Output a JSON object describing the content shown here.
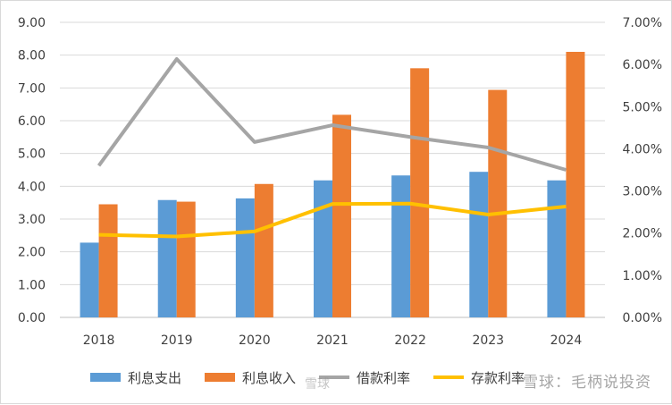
{
  "chart_data": {
    "type": "bar",
    "categories": [
      "2018",
      "2019",
      "2020",
      "2021",
      "2022",
      "2023",
      "2024"
    ],
    "series": [
      {
        "name": "利息支出",
        "kind": "bar",
        "axis": "left",
        "color": "#5b9bd5",
        "values": [
          2.28,
          3.58,
          3.63,
          4.18,
          4.33,
          4.44,
          4.18
        ]
      },
      {
        "name": "利息收入",
        "kind": "bar",
        "axis": "left",
        "color": "#ed7d31",
        "values": [
          3.45,
          3.53,
          4.07,
          6.18,
          7.6,
          6.94,
          8.1
        ]
      },
      {
        "name": "借款利率",
        "kind": "line",
        "axis": "right",
        "color": "#a5a5a5",
        "values": [
          0.036,
          0.0613,
          0.0416,
          0.0456,
          0.0428,
          0.0403,
          0.035
        ]
      },
      {
        "name": "存款利率",
        "kind": "line",
        "axis": "right",
        "color": "#ffc000",
        "values": [
          0.0196,
          0.0192,
          0.0204,
          0.0269,
          0.027,
          0.0244,
          0.0263
        ]
      }
    ],
    "y_left": {
      "min": 0,
      "max": 9,
      "step": 1,
      "ticks": [
        "0.00",
        "1.00",
        "2.00",
        "3.00",
        "4.00",
        "5.00",
        "6.00",
        "7.00",
        "8.00",
        "9.00"
      ]
    },
    "y_right": {
      "min": 0,
      "max": 0.07,
      "step": 0.01,
      "ticks": [
        "0.00%",
        "1.00%",
        "2.00%",
        "3.00%",
        "4.00%",
        "5.00%",
        "6.00%",
        "7.00%"
      ]
    },
    "grid": true,
    "legend_position": "bottom"
  },
  "legend": {
    "item1": "利息支出",
    "item2": "利息收入",
    "item3": "借款利率",
    "item4": "存款利率"
  },
  "watermark": {
    "text": "雪球：毛柄说投资",
    "text2": "雪球"
  }
}
